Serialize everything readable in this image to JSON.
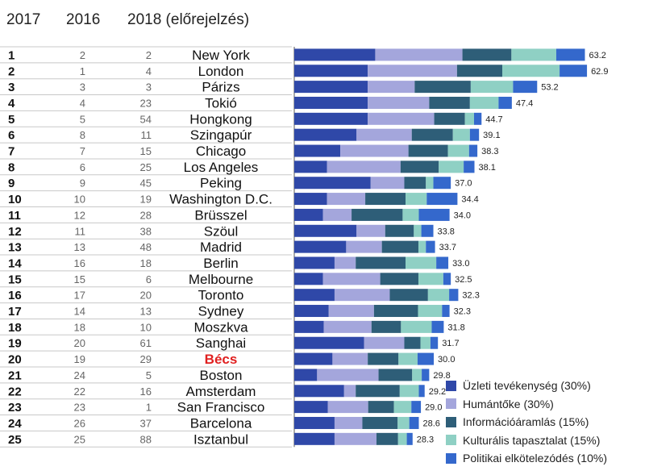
{
  "headers": {
    "col2017": "2017",
    "col2016": "2016",
    "col2018": "2018 (előrejelzés)"
  },
  "chart_data": {
    "type": "bar",
    "stacked": true,
    "orientation": "horizontal",
    "title": "",
    "highlight_city": "Bécs",
    "highlight_color": "#e02020",
    "series": [
      {
        "name": "Üzleti tevékenység (30%)",
        "color": "#2f48a8"
      },
      {
        "name": "Humántőke (30%)",
        "color": "#a4a6dc"
      },
      {
        "name": "Információáramlás (15%)",
        "color": "#2e5e78"
      },
      {
        "name": "Kulturális tapasztalat (15%)",
        "color": "#8fd0c4"
      },
      {
        "name": "Politikai elkötelezódés (10%)",
        "color": "#3468cc"
      }
    ],
    "rows": [
      {
        "r2017": "1",
        "r2016": "2",
        "r2018": "2",
        "city": "New York",
        "total": "63.2",
        "parts": [
          19.5,
          21.0,
          11.8,
          10.8,
          6.9
        ]
      },
      {
        "r2017": "2",
        "r2016": "1",
        "r2018": "4",
        "city": "London",
        "total": "62.9",
        "parts": [
          17.7,
          21.5,
          10.9,
          13.8,
          6.6
        ]
      },
      {
        "r2017": "3",
        "r2016": "3",
        "r2018": "3",
        "city": "Párizs",
        "total": "53.2",
        "parts": [
          17.7,
          11.3,
          13.5,
          10.2,
          5.8
        ]
      },
      {
        "r2017": "4",
        "r2016": "4",
        "r2018": "23",
        "city": "Tokió",
        "total": "47.4",
        "parts": [
          17.7,
          14.8,
          9.8,
          6.9,
          3.2
        ]
      },
      {
        "r2017": "5",
        "r2016": "5",
        "r2018": "54",
        "city": "Hongkong",
        "total": "44.7",
        "parts": [
          17.7,
          16.0,
          7.4,
          2.2,
          1.8
        ]
      },
      {
        "r2017": "6",
        "r2016": "8",
        "r2018": "11",
        "city": "Szingapúr",
        "total": "39.1",
        "parts": [
          15.0,
          13.3,
          9.9,
          4.1,
          2.2
        ]
      },
      {
        "r2017": "7",
        "r2016": "7",
        "r2018": "15",
        "city": "Chicago",
        "total": "38.3",
        "parts": [
          11.1,
          16.4,
          9.5,
          5.1,
          2.0
        ]
      },
      {
        "r2017": "8",
        "r2016": "6",
        "r2018": "25",
        "city": "Los Angeles",
        "total": "38.1",
        "parts": [
          7.9,
          17.7,
          9.2,
          6.0,
          2.6
        ]
      },
      {
        "r2017": "9",
        "r2016": "9",
        "r2018": "45",
        "city": "Peking",
        "total": "37.0",
        "parts": [
          18.4,
          8.1,
          5.2,
          1.8,
          4.2
        ]
      },
      {
        "r2017": "10",
        "r2016": "10",
        "r2018": "19",
        "city": "Washington D.C.",
        "total": "34.4",
        "parts": [
          7.9,
          9.2,
          9.7,
          5.1,
          7.4
        ]
      },
      {
        "r2017": "11",
        "r2016": "12",
        "r2018": "28",
        "city": "Brüsszel",
        "total": "34.0",
        "parts": [
          6.9,
          6.9,
          12.3,
          3.9,
          7.4
        ]
      },
      {
        "r2017": "12",
        "r2016": "11",
        "r2018": "38",
        "city": "Szöul",
        "total": "33.8",
        "parts": [
          15.0,
          6.9,
          6.9,
          1.8,
          2.9
        ]
      },
      {
        "r2017": "13",
        "r2016": "13",
        "r2018": "48",
        "city": "Madrid",
        "total": "33.7",
        "parts": [
          12.5,
          8.6,
          8.8,
          1.8,
          2.2
        ]
      },
      {
        "r2017": "14",
        "r2016": "16",
        "r2018": "18",
        "city": "Berlin",
        "total": "33.0",
        "parts": [
          9.7,
          5.1,
          12.0,
          7.4,
          2.9
        ]
      },
      {
        "r2017": "15",
        "r2016": "15",
        "r2018": "6",
        "city": "Melbourne",
        "total": "32.5",
        "parts": [
          6.9,
          13.8,
          9.2,
          6.0,
          1.8
        ]
      },
      {
        "r2017": "16",
        "r2016": "17",
        "r2018": "20",
        "city": "Toronto",
        "total": "32.3",
        "parts": [
          9.7,
          13.3,
          9.2,
          5.1,
          2.2
        ]
      },
      {
        "r2017": "17",
        "r2016": "14",
        "r2018": "13",
        "city": "Sydney",
        "total": "32.3",
        "parts": [
          8.3,
          10.9,
          10.6,
          5.8,
          1.8
        ]
      },
      {
        "r2017": "18",
        "r2016": "18",
        "r2018": "10",
        "city": "Moszkva",
        "total": "31.8",
        "parts": [
          7.1,
          11.5,
          7.1,
          7.4,
          2.9
        ]
      },
      {
        "r2017": "19",
        "r2016": "20",
        "r2018": "61",
        "city": "Sanghai",
        "total": "31.7",
        "parts": [
          16.8,
          9.7,
          3.9,
          2.4,
          1.8
        ]
      },
      {
        "r2017": "20",
        "r2016": "19",
        "r2018": "29",
        "city": "Bécs",
        "total": "30.0",
        "parts": [
          9.2,
          8.5,
          7.4,
          4.6,
          3.9
        ]
      },
      {
        "r2017": "21",
        "r2016": "24",
        "r2018": "5",
        "city": "Boston",
        "total": "29.8",
        "parts": [
          5.5,
          14.8,
          8.1,
          2.3,
          1.8
        ]
      },
      {
        "r2017": "22",
        "r2016": "22",
        "r2018": "16",
        "city": "Amsterdam",
        "total": "29.2",
        "parts": [
          12.0,
          2.8,
          10.6,
          4.6,
          1.4
        ]
      },
      {
        "r2017": "23",
        "r2016": "23",
        "r2018": "1",
        "city": "San Francisco",
        "total": "29.0",
        "parts": [
          8.1,
          9.7,
          6.2,
          4.2,
          2.3
        ]
      },
      {
        "r2017": "24",
        "r2016": "26",
        "r2018": "37",
        "city": "Barcelona",
        "total": "28.6",
        "parts": [
          9.7,
          6.7,
          8.5,
          2.8,
          2.3
        ]
      },
      {
        "r2017": "25",
        "r2016": "25",
        "r2018": "88",
        "city": "Isztanbul",
        "total": "28.3",
        "parts": [
          9.7,
          10.1,
          5.2,
          2.1,
          1.4
        ]
      }
    ]
  }
}
